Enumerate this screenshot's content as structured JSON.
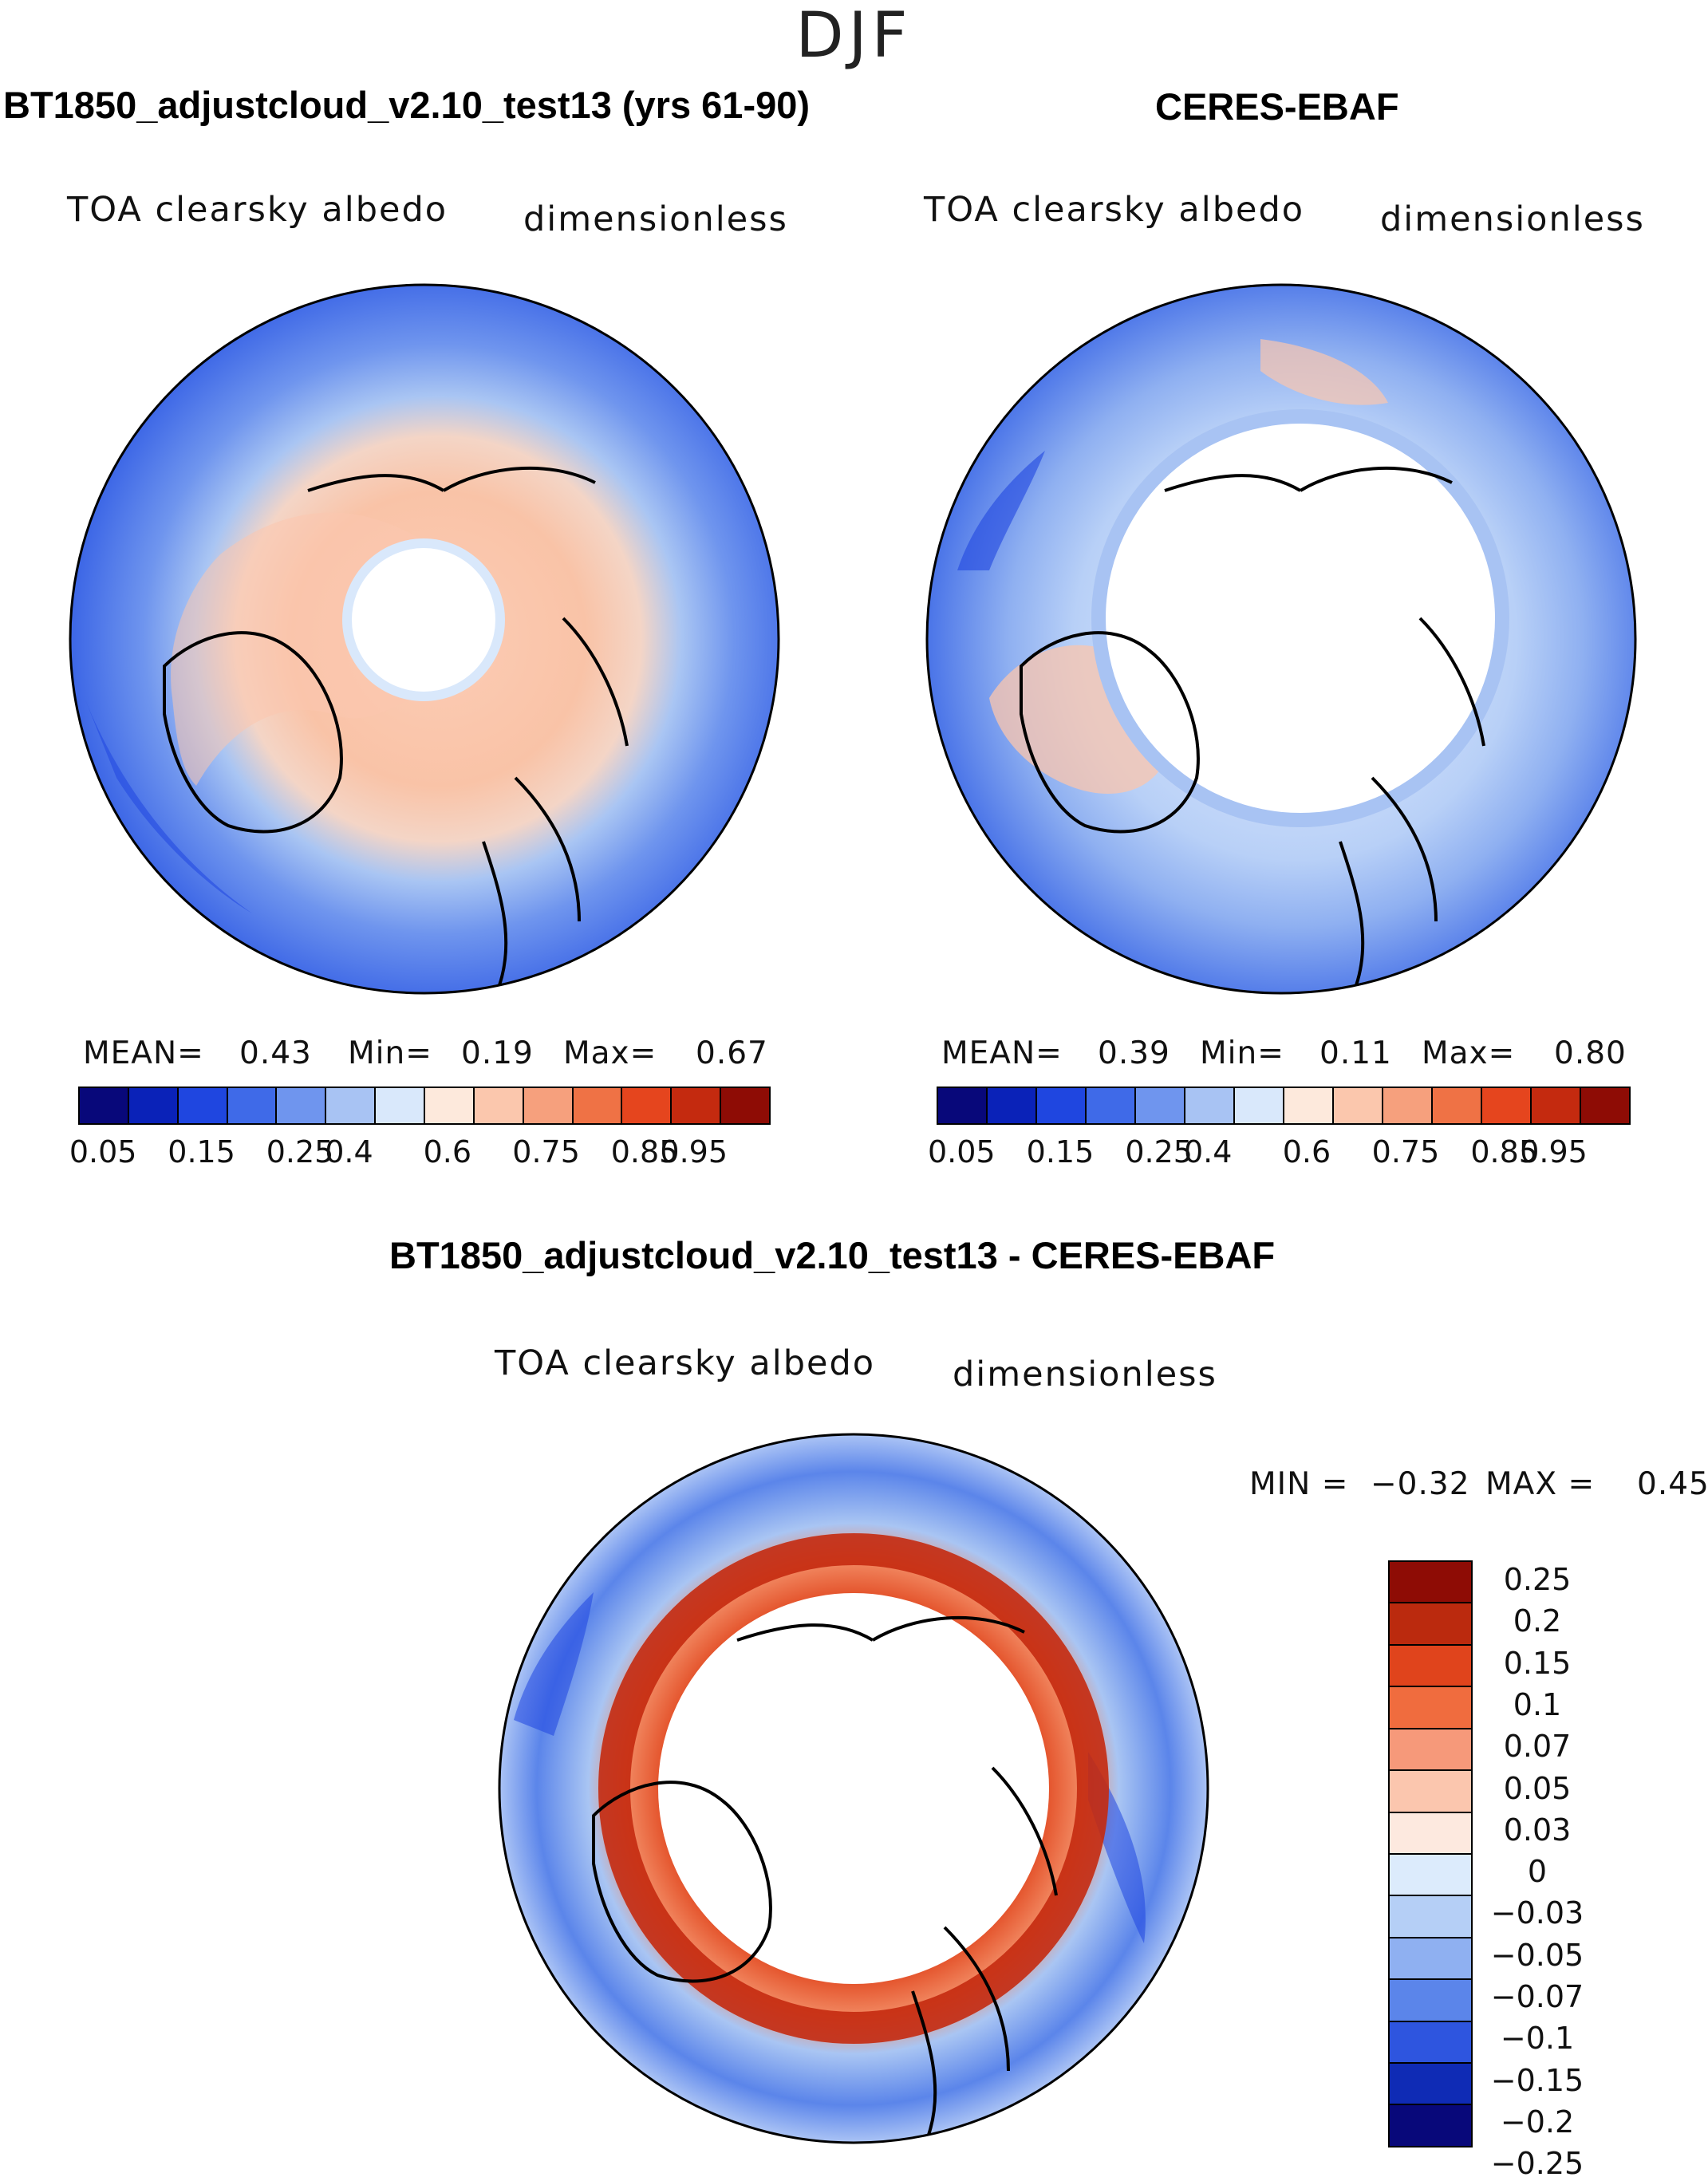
{
  "season": "DJF",
  "palette_abs": [
    "#08087a",
    "#0a22b8",
    "#1f46e0",
    "#3f6ae8",
    "#6f95ee",
    "#a8c3f3",
    "#d9e8fb",
    "#fde9dc",
    "#fbc7ad",
    "#f6a07d",
    "#ef7245",
    "#e5451e",
    "#c42a0f",
    "#8e0c05"
  ],
  "palette_diff": [
    "#8e0c05",
    "#bb2a0e",
    "#e0441c",
    "#f06c3e",
    "#f6997a",
    "#fbc6ae",
    "#fde9df",
    "#dcebfc",
    "#b5cff6",
    "#8fb0f1",
    "#5b85ea",
    "#2e55df",
    "#0f2bb5",
    "#08087a"
  ],
  "panels": [
    {
      "title": "BT1850_adjustcloud_v2.10_test13 (yrs 61-90)",
      "variable": "TOA clearsky albedo",
      "units": "dimensionless",
      "mean_label": "MEAN=",
      "mean_value": "0.43",
      "min_label": "Min=",
      "min_value": "0.19",
      "max_label": "Max=",
      "max_value": "0.67"
    },
    {
      "title": "CERES-EBAF",
      "variable": "TOA clearsky albedo",
      "units": "dimensionless",
      "mean_label": "MEAN=",
      "mean_value": "0.39",
      "min_label": "Min=",
      "min_value": "0.11",
      "max_label": "Max=",
      "max_value": "0.80"
    }
  ],
  "abs_ticks": [
    "0.05",
    "0.15",
    "0.25",
    "0.4",
    "0.6",
    "0.75",
    "0.85",
    "0.95"
  ],
  "difference": {
    "title": "BT1850_adjustcloud_v2.10_test13 - CERES-EBAF",
    "variable": "TOA clearsky albedo",
    "units": "dimensionless",
    "min_label": "MIN =",
    "min_value": "−0.32",
    "max_label": "MAX =",
    "max_value": "0.45",
    "ticks": [
      "0.25",
      "0.2",
      "0.15",
      "0.1",
      "0.07",
      "0.05",
      "0.03",
      "0",
      "−0.03",
      "−0.05",
      "−0.07",
      "−0.1",
      "−0.15",
      "−0.2",
      "−0.25"
    ]
  }
}
